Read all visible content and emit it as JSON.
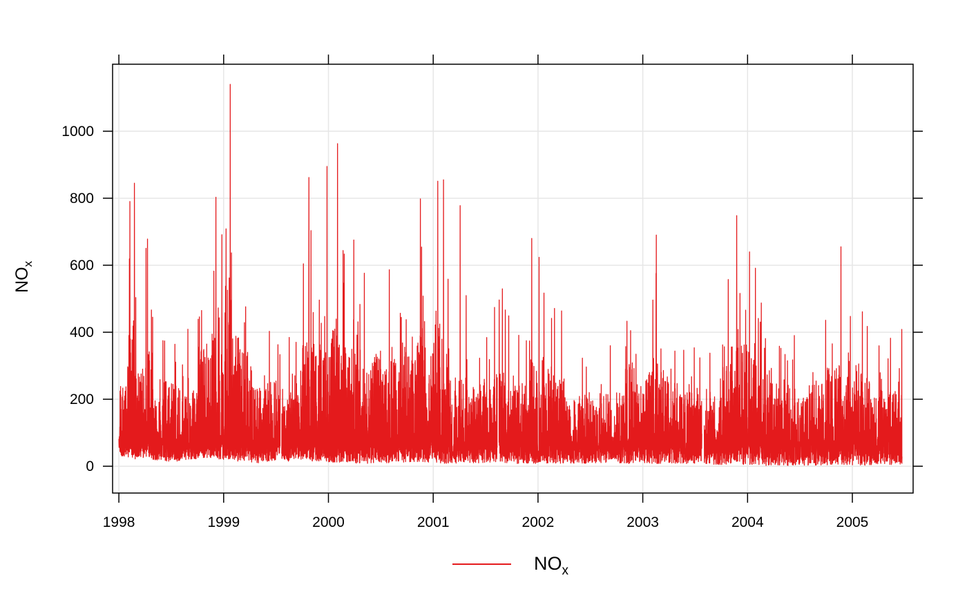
{
  "chart_data": {
    "type": "line",
    "title": "",
    "xlabel": "",
    "ylabel": {
      "main": "NO",
      "sub": "x"
    },
    "xlim": [
      1997.94,
      2005.58
    ],
    "ylim": [
      -80,
      1200
    ],
    "x_ticks": [
      1998,
      1999,
      2000,
      2001,
      2002,
      2003,
      2004,
      2005
    ],
    "x_tick_labels": [
      "1998",
      "1999",
      "2000",
      "2001",
      "2002",
      "2003",
      "2004",
      "2005"
    ],
    "y_ticks": [
      0,
      200,
      400,
      600,
      800,
      1000
    ],
    "y_tick_labels": [
      "0",
      "200",
      "400",
      "600",
      "800",
      "1000"
    ],
    "grid": true,
    "legend_position": "bottom",
    "series": [
      {
        "name": {
          "main": "NO",
          "sub": "x"
        },
        "color": "#e41a1c",
        "x_start": "1998-01-01",
        "x_end": "2005-06-23",
        "gaps": [
          [
            "1999-07-17",
            "1999-07-22"
          ],
          [
            "2001-08-12",
            "2001-08-18"
          ],
          [
            "2003-07-26",
            "2003-08-03"
          ]
        ],
        "notable_peaks": [
          {
            "x": "1998-02-24",
            "y": 845
          },
          {
            "x": "1998-12-05",
            "y": 803
          },
          {
            "x": "1999-01-24",
            "y": 1140
          },
          {
            "x": "1999-10-25",
            "y": 862
          },
          {
            "x": "1999-12-27",
            "y": 895
          },
          {
            "x": "2000-02-02",
            "y": 963
          },
          {
            "x": "2000-11-17",
            "y": 798
          },
          {
            "x": "2001-02-06",
            "y": 855
          },
          {
            "x": "2001-04-05",
            "y": 778
          },
          {
            "x": "2001-12-10",
            "y": 680
          },
          {
            "x": "2003-02-17",
            "y": 690
          },
          {
            "x": "2003-11-24",
            "y": 748
          },
          {
            "x": "2004-11-22",
            "y": 655
          }
        ],
        "monthly_max": [
          490,
          845,
          620,
          700,
          430,
          520,
          510,
          470,
          460,
          740,
          800,
          750,
          1140,
          780,
          690,
          470,
          480,
          530,
          480,
          440,
          600,
          860,
          720,
          895,
          963,
          760,
          700,
          620,
          650,
          700,
          590,
          650,
          700,
          660,
          798,
          720,
          855,
          778,
          530,
          545,
          500,
          520,
          540,
          560,
          510,
          490,
          500,
          640,
          680,
          600,
          520,
          420,
          410,
          440,
          430,
          440,
          380,
          460,
          620,
          520,
          560,
          690,
          580,
          520,
          480,
          500,
          470,
          460,
          420,
          600,
          720,
          750,
          740,
          580,
          600,
          500,
          440,
          470,
          460,
          560,
          500,
          600,
          655,
          600,
          620,
          560,
          430,
          480,
          470,
          430
        ],
        "monthly_min": [
          30,
          20,
          25,
          20,
          18,
          15,
          15,
          20,
          20,
          25,
          25,
          20,
          20,
          15,
          15,
          10,
          12,
          15,
          20,
          15,
          20,
          20,
          15,
          15,
          10,
          10,
          12,
          8,
          8,
          10,
          10,
          15,
          12,
          12,
          12,
          10,
          10,
          8,
          8,
          10,
          10,
          8,
          12,
          12,
          10,
          8,
          8,
          8,
          10,
          8,
          8,
          8,
          8,
          8,
          10,
          10,
          12,
          10,
          8,
          10,
          10,
          8,
          8,
          8,
          8,
          8,
          8,
          8,
          5,
          5,
          5,
          5,
          5,
          5,
          2,
          2,
          2,
          3,
          3,
          3,
          2,
          3,
          3,
          3,
          3,
          3,
          3,
          5,
          5,
          5
        ]
      }
    ]
  }
}
